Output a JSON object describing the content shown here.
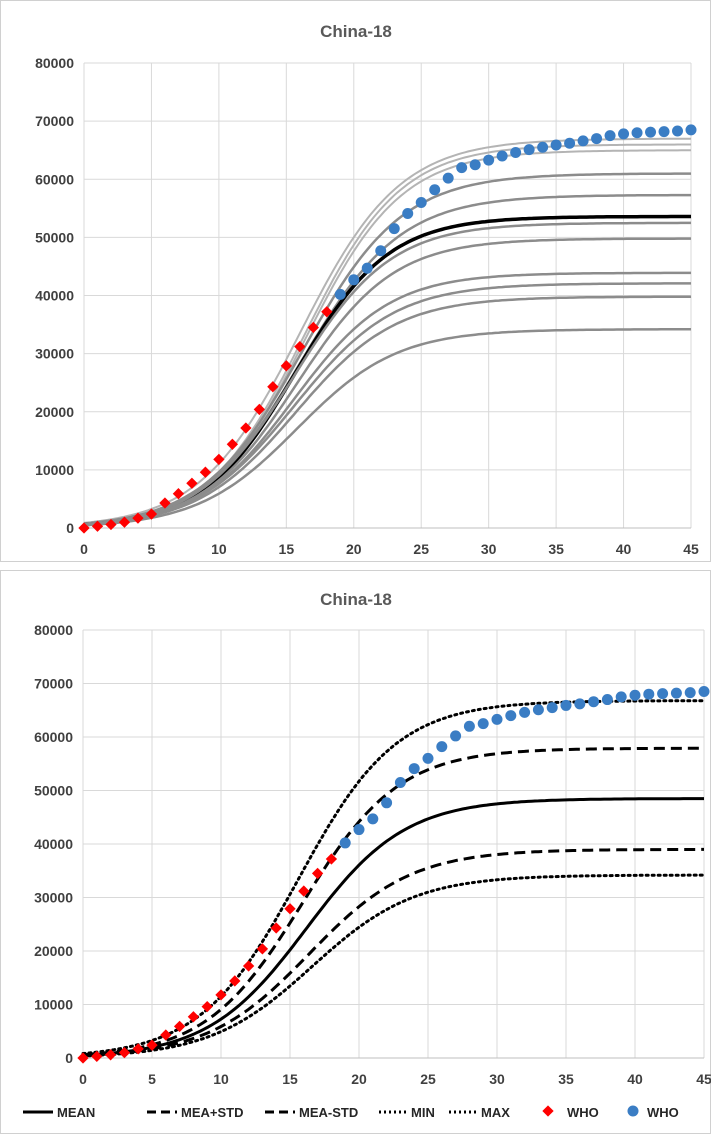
{
  "chart_data": [
    {
      "type": "line",
      "title": "China-18",
      "xlim": [
        0,
        45
      ],
      "ylim": [
        0,
        80000
      ],
      "x_ticks": [
        "0",
        "5",
        "10",
        "15",
        "20",
        "25",
        "30",
        "35",
        "40",
        "45"
      ],
      "y_ticks": [
        "0",
        "10000",
        "20000",
        "30000",
        "40000",
        "50000",
        "60000",
        "70000",
        "80000"
      ],
      "grid": true,
      "legend": "none",
      "model_curves": [
        {
          "K": 67000,
          "r": 0.27,
          "x0": 16.0,
          "style": "light-gray"
        },
        {
          "K": 66000,
          "r": 0.28,
          "x0": 16.3,
          "style": "light-gray"
        },
        {
          "K": 65000,
          "r": 0.28,
          "x0": 16.4,
          "style": "light-gray"
        },
        {
          "K": 61000,
          "r": 0.27,
          "x0": 16.2,
          "style": "gray"
        },
        {
          "K": 57300,
          "r": 0.27,
          "x0": 16.1,
          "style": "gray"
        },
        {
          "K": 53600,
          "r": 0.29,
          "x0": 15.7,
          "style": "mean-black"
        },
        {
          "K": 52500,
          "r": 0.28,
          "x0": 15.6,
          "style": "gray"
        },
        {
          "K": 49800,
          "r": 0.28,
          "x0": 15.8,
          "style": "gray"
        },
        {
          "K": 43900,
          "r": 0.28,
          "x0": 15.5,
          "style": "gray"
        },
        {
          "K": 42100,
          "r": 0.27,
          "x0": 15.6,
          "style": "gray"
        },
        {
          "K": 39800,
          "r": 0.27,
          "x0": 15.7,
          "style": "gray"
        },
        {
          "K": 34200,
          "r": 0.27,
          "x0": 15.8,
          "style": "gray"
        }
      ],
      "who_red": {
        "x": [
          0,
          1,
          2,
          3,
          4,
          5,
          6,
          7,
          8,
          9,
          10,
          11,
          12,
          13,
          14,
          15,
          16,
          17,
          18
        ],
        "y": [
          0,
          300,
          600,
          1000,
          1700,
          2400,
          4300,
          5900,
          7700,
          9600,
          11800,
          14400,
          17200,
          20400,
          24300,
          27900,
          31200,
          34500,
          37200
        ]
      },
      "who_blue": {
        "x": [
          19,
          20,
          21,
          22,
          23,
          24,
          25,
          26,
          27,
          28,
          29,
          30,
          31,
          32,
          33,
          34,
          35,
          36,
          37,
          38,
          39,
          40,
          41,
          42,
          43,
          44,
          45
        ],
        "y": [
          40200,
          42700,
          44700,
          47700,
          51500,
          54100,
          56000,
          58200,
          60200,
          62000,
          62500,
          63300,
          64000,
          64600,
          65100,
          65500,
          65900,
          66200,
          66600,
          67000,
          67500,
          67800,
          68000,
          68100,
          68200,
          68300,
          68500
        ]
      }
    },
    {
      "type": "line",
      "title": "China-18",
      "xlim": [
        0,
        45
      ],
      "ylim": [
        0,
        80000
      ],
      "x_ticks": [
        "0",
        "5",
        "10",
        "15",
        "20",
        "25",
        "30",
        "35",
        "40",
        "45"
      ],
      "y_ticks": [
        "0",
        "10000",
        "20000",
        "30000",
        "40000",
        "50000",
        "60000",
        "70000",
        "80000"
      ],
      "grid": true,
      "legend": "bottom",
      "series": [
        {
          "name": "MEAN",
          "K": 48500,
          "r": 0.28,
          "x0": 16.2,
          "style": "solid"
        },
        {
          "name": "MEA+STD",
          "K": 57900,
          "r": 0.285,
          "x0": 15.9,
          "style": "dashed"
        },
        {
          "name": "MEA-STD",
          "K": 39000,
          "r": 0.27,
          "x0": 16.4,
          "style": "dashed"
        },
        {
          "name": "MIN",
          "K": 34200,
          "r": 0.27,
          "x0": 16.6,
          "style": "dotted"
        },
        {
          "name": "MAX",
          "K": 66800,
          "r": 0.28,
          "x0": 15.6,
          "style": "dotted"
        }
      ],
      "who_red": {
        "name": "WHO",
        "x": [
          0,
          1,
          2,
          3,
          4,
          5,
          6,
          7,
          8,
          9,
          10,
          11,
          12,
          13,
          14,
          15,
          16,
          17,
          18
        ],
        "y": [
          0,
          300,
          600,
          1000,
          1700,
          2400,
          4300,
          5900,
          7700,
          9600,
          11800,
          14400,
          17200,
          20400,
          24300,
          27900,
          31200,
          34500,
          37200
        ]
      },
      "who_blue": {
        "name": "WHO",
        "x": [
          19,
          20,
          21,
          22,
          23,
          24,
          25,
          26,
          27,
          28,
          29,
          30,
          31,
          32,
          33,
          34,
          35,
          36,
          37,
          38,
          39,
          40,
          41,
          42,
          43,
          44,
          45
        ],
        "y": [
          40200,
          42700,
          44700,
          47700,
          51500,
          54100,
          56000,
          58200,
          60200,
          62000,
          62500,
          63300,
          64000,
          64600,
          65100,
          65500,
          65900,
          66200,
          66600,
          67000,
          67500,
          67800,
          68000,
          68100,
          68200,
          68300,
          68500
        ]
      }
    }
  ],
  "colors": {
    "red": "#ff0000",
    "blue": "#3a7dc4",
    "black": "#000000",
    "gray": "#8c8c8c",
    "light_gray": "#b4b4b4",
    "grid": "#d9d9d9"
  }
}
